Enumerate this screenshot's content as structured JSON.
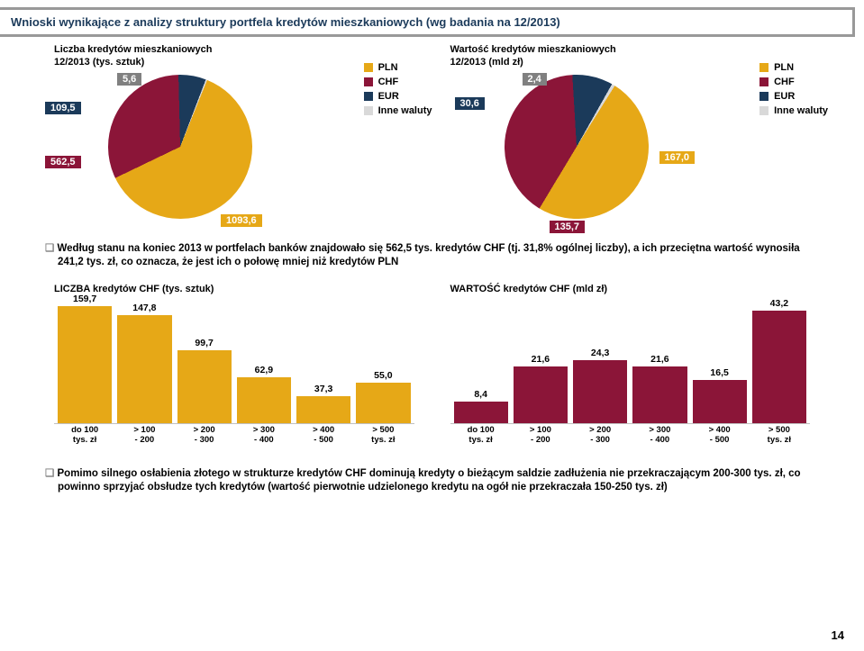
{
  "page": {
    "title": "Wnioski wynikające z analizy struktury portfela kredytów mieszkaniowych (wg badania na 12/2013)",
    "number": "14"
  },
  "colors": {
    "pln": "#e6a817",
    "chf": "#8b1538",
    "eur": "#1b3a5a",
    "other": "#d9d9d9",
    "label_boxes": {
      "pln": "#e6a817",
      "chf": "#8b1538",
      "eur": "#1b3a5a",
      "other": "#808080"
    }
  },
  "legend": {
    "items": [
      {
        "label": "PLN",
        "color_key": "pln"
      },
      {
        "label": "CHF",
        "color_key": "chf"
      },
      {
        "label": "EUR",
        "color_key": "eur"
      },
      {
        "label": "Inne waluty",
        "color_key": "other"
      }
    ]
  },
  "pie_left": {
    "title": "Liczba kredytów mieszkaniowych\n12/2013 (tys. sztuk)",
    "slices": [
      {
        "label": "PLN",
        "value": 1093.6,
        "color_key": "pln"
      },
      {
        "label": "CHF",
        "value": 562.5,
        "color_key": "chf"
      },
      {
        "label": "EUR",
        "value": 109.5,
        "color_key": "eur"
      },
      {
        "label": "Inne waluty",
        "value": 5.6,
        "color_key": "other"
      }
    ],
    "value_labels": {
      "pln": "1093,6",
      "chf": "562,5",
      "eur": "109,5",
      "other": "5,6"
    }
  },
  "pie_right": {
    "title": "Wartość kredytów mieszkaniowych\n12/2013 (mld zł)",
    "slices": [
      {
        "label": "PLN",
        "value": 167.0,
        "color_key": "pln"
      },
      {
        "label": "CHF",
        "value": 135.7,
        "color_key": "chf"
      },
      {
        "label": "EUR",
        "value": 30.6,
        "color_key": "eur"
      },
      {
        "label": "Inne waluty",
        "value": 2.4,
        "color_key": "other"
      }
    ],
    "value_labels": {
      "pln": "167,0",
      "chf": "135,7",
      "eur": "30,6",
      "other": "2,4"
    }
  },
  "bullet1": "Według stanu na koniec 2013 w portfelach banków znajdowało się 562,5 tys. kredytów CHF (tj. 31,8% ogólnej liczby), a ich przeciętna wartość wynosiła 241,2 tys. zł, co oznacza, że jest ich o połowę mniej niż kredytów PLN",
  "bullet2": "Pomimo silnego osłabienia złotego w strukturze kredytów CHF dominują kredyty o bieżącym saldzie zadłużenia nie przekraczającym 200-300 tys. zł, co powinno sprzyjać obsłudze tych kredytów (wartość pierwotnie udzielonego kredytu na ogół nie przekraczała 150-250 tys. zł)",
  "bar_left": {
    "title": "LICZBA kredytów CHF (tys. sztuk)",
    "color_key": "pln",
    "ymax": 160,
    "categories": [
      "do 100\ntys. zł",
      "> 100\n- 200",
      "> 200\n- 300",
      "> 300\n- 400",
      "> 400\n- 500",
      "> 500\ntys. zł"
    ],
    "values": [
      159.7,
      147.8,
      99.7,
      62.9,
      37.3,
      55.0
    ],
    "value_labels": [
      "159,7",
      "147,8",
      "99,7",
      "62,9",
      "37,3",
      "55,0"
    ]
  },
  "bar_right": {
    "title": "WARTOŚĆ kredytów CHF (mld zł)",
    "color_key": "chf",
    "ymax": 45,
    "categories": [
      "do 100\ntys. zł",
      "> 100\n- 200",
      "> 200\n- 300",
      "> 300\n- 400",
      "> 400\n- 500",
      "> 500\ntys. zł"
    ],
    "values": [
      8.4,
      21.6,
      24.3,
      21.6,
      16.5,
      43.2
    ],
    "value_labels": [
      "8,4",
      "21,6",
      "24,3",
      "21,6",
      "16,5",
      "43,2"
    ]
  }
}
